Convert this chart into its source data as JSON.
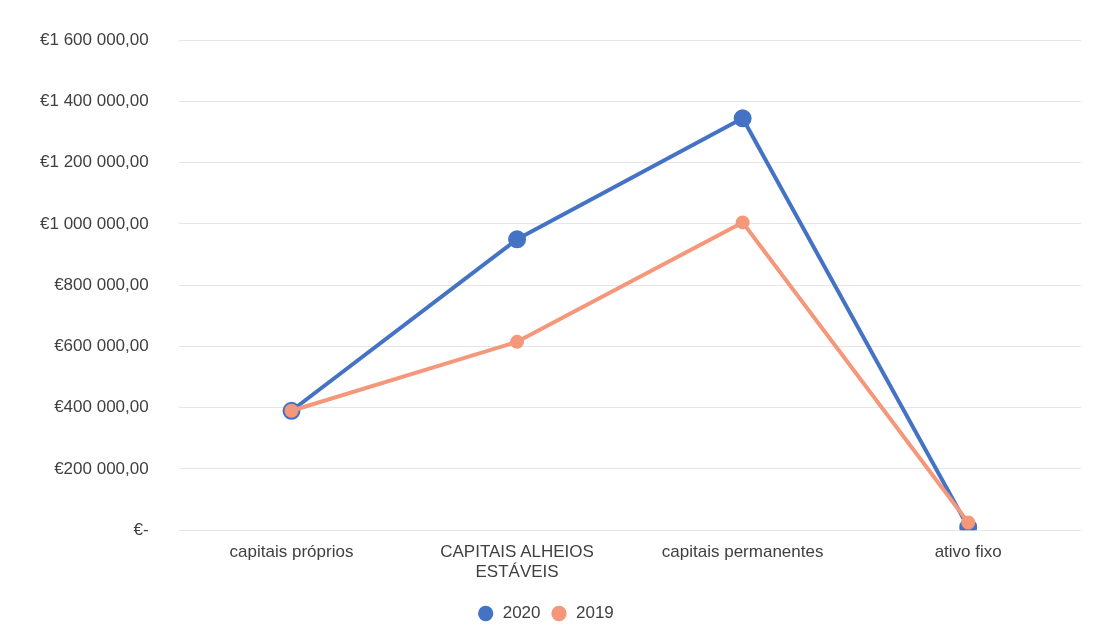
{
  "chart_data": {
    "type": "line",
    "categories": [
      "capitais próprios",
      "CAPITAIS ALHEIOS ESTÁVEIS",
      "capitais permanentes",
      "ativo fixo"
    ],
    "series": [
      {
        "name": "2020",
        "color": "#4472c4",
        "values": [
          390000,
          950000,
          1345000,
          10000
        ]
      },
      {
        "name": "2019",
        "color": "#f4977a",
        "values": [
          390000,
          615000,
          1005000,
          25000
        ]
      }
    ],
    "ylim": [
      0,
      1600000
    ],
    "yticks": [
      {
        "value": 0,
        "label": "€-"
      },
      {
        "value": 200000,
        "label": "€200 000,00"
      },
      {
        "value": 400000,
        "label": "€400 000,00"
      },
      {
        "value": 600000,
        "label": "€600 000,00"
      },
      {
        "value": 800000,
        "label": "€800 000,00"
      },
      {
        "value": 1000000,
        "label": "€1 000 000,00"
      },
      {
        "value": 1200000,
        "label": "€1 200 000,00"
      },
      {
        "value": 1400000,
        "label": "€1 400 000,00"
      },
      {
        "value": 1600000,
        "label": "€1 600 000,00"
      }
    ],
    "grid": "y",
    "legend": "bottom",
    "marker": "circle",
    "line_style": "solid"
  }
}
